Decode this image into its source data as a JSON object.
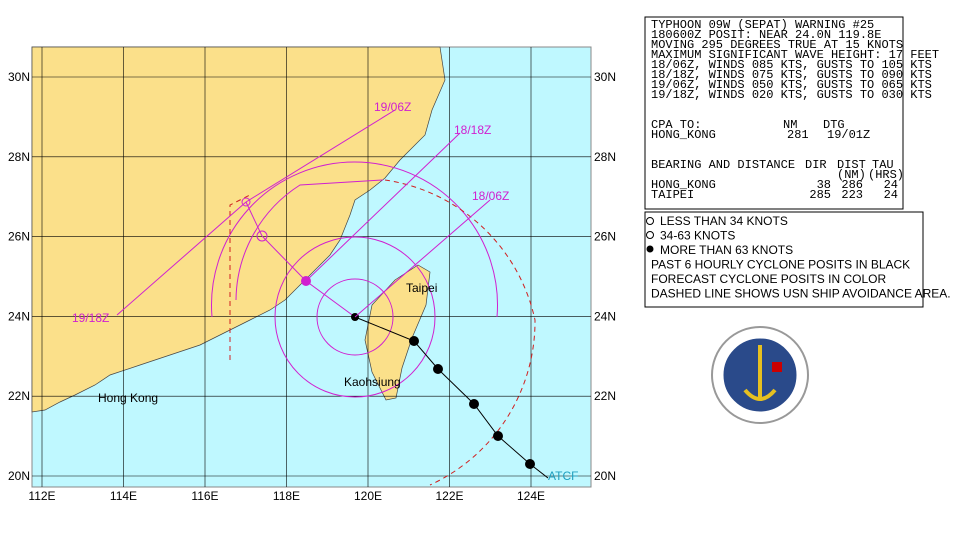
{
  "map": {
    "lat_labels": [
      "30N",
      "28N",
      "26N",
      "24N",
      "22N",
      "20N"
    ],
    "lon_labels": [
      "112E",
      "114E",
      "116E",
      "118E",
      "120E",
      "122E",
      "124E"
    ],
    "places": [
      "Taipei",
      "Kaohsiung",
      "Hong Kong"
    ],
    "forecast_labels": [
      "19/06Z",
      "18/18Z",
      "18/06Z",
      "19/18Z"
    ],
    "credit": "ATCF"
  },
  "warning": {
    "lines": [
      "TYPHOON 09W (SEPAT) WARNING #25",
      "180600Z POSIT: NEAR 24.0N 119.8E",
      "MOVING 295 DEGREES TRUE AT 15 KNOTS",
      "MAXIMUM SIGNIFICANT WAVE HEIGHT: 17 FEET",
      "18/06Z, WINDS 085 KTS, GUSTS TO 105 KTS",
      "18/18Z, WINDS 075 KTS, GUSTS TO 090 KTS",
      "19/06Z, WINDS 050 KTS, GUSTS TO 065 KTS",
      "19/18Z, WINDS 020 KTS, GUSTS TO 030 KTS"
    ],
    "cpa": {
      "header": [
        "CPA TO:",
        "NM",
        "DTG"
      ],
      "row": [
        "HONG_KONG",
        "281",
        "19/01Z"
      ]
    },
    "bearing": {
      "header": [
        "BEARING AND DISTANCE",
        "DIR",
        "DIST",
        "TAU"
      ],
      "units": [
        "(NM)",
        "(HRS)"
      ],
      "rows": [
        [
          "HONG_KONG",
          "38",
          "286",
          "24"
        ],
        [
          "TAIPEI",
          "285",
          "223",
          "24"
        ]
      ]
    }
  },
  "legend": {
    "lines": [
      "LESS THAN 34 KNOTS",
      "34-63 KNOTS",
      "MORE THAN 63 KNOTS",
      "PAST 6 HOURLY CYCLONE POSITS IN BLACK",
      "FORECAST CYCLONE POSITS IN COLOR",
      "DASHED LINE SHOWS USN SHIP AVOIDANCE AREA."
    ]
  }
}
